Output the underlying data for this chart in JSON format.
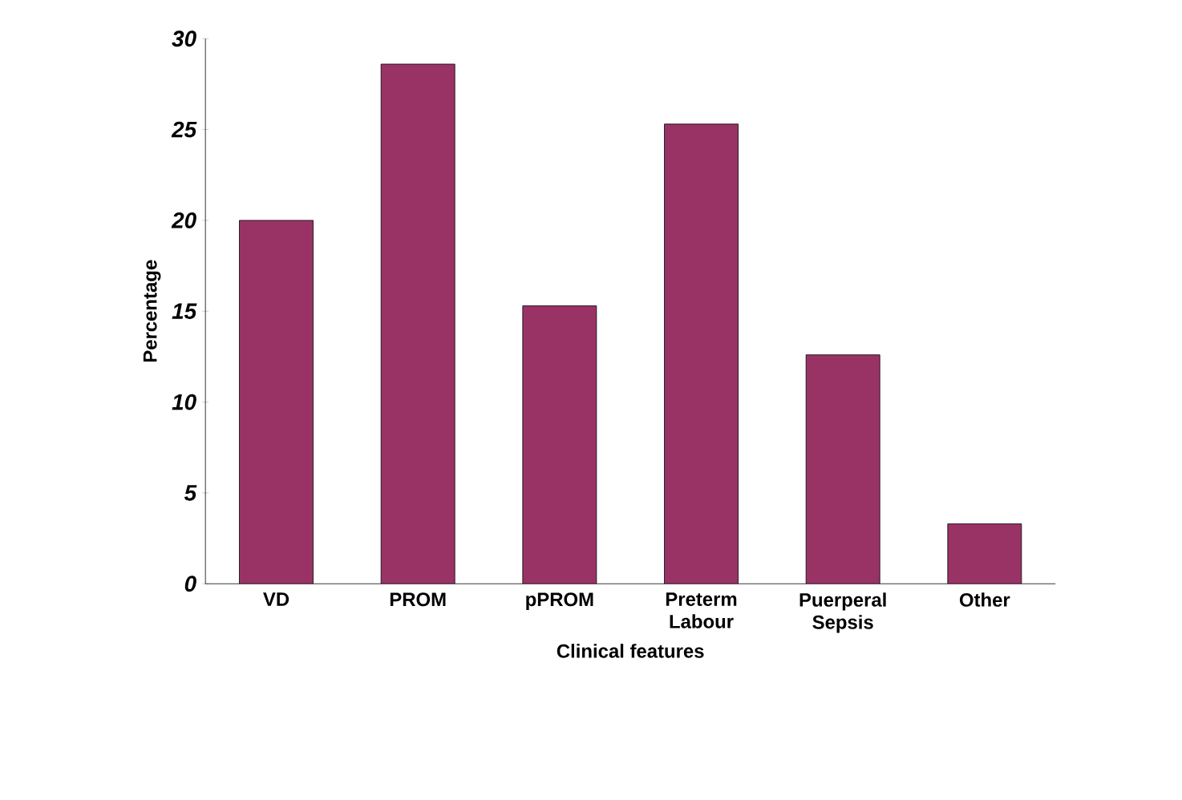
{
  "chart_data": {
    "type": "bar",
    "xlabel": "Clinical features",
    "ylabel": "Percentage",
    "categories": [
      "VD",
      "PROM",
      "pPROM",
      "Preterm Labour",
      "Puerperal Sepsis",
      "Other"
    ],
    "values": [
      20,
      28.6,
      15.3,
      25.3,
      12.6,
      3.3
    ],
    "color": "#993366",
    "ylim": [
      0,
      30
    ],
    "yticks": [
      0,
      5,
      10,
      15,
      20,
      25,
      30
    ],
    "grid": false
  }
}
